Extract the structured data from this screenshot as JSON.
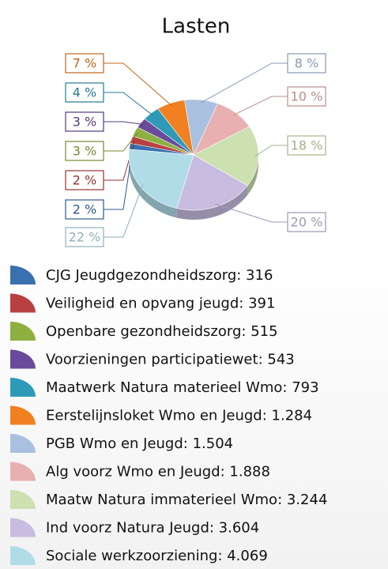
{
  "chart_data": {
    "type": "pie",
    "title": "Lasten",
    "categories": [
      "CJG Jeugdgezondheidszorg",
      "Veiligheid en opvang jeugd",
      "Openbare gezondheidszorg",
      "Voorzieningen participatiewet",
      "Maatwerk Natura materieel Wmo",
      "Eerstelijnsloket Wmo en Jeugd",
      "PGB Wmo en Jeugd",
      "Alg voorz Wmo en Jeugd",
      "Maatw Natura immaterieel Wmo",
      "Ind voorz Natura Jeugd",
      "Sociale werkzoorziening"
    ],
    "values": [
      316,
      391,
      515,
      543,
      793,
      1284,
      1504,
      1888,
      3244,
      3604,
      4069
    ],
    "value_labels": [
      "316",
      "391",
      "515",
      "543",
      "793",
      "1.284",
      "1.504",
      "1.888",
      "3.244",
      "3.604",
      "4.069"
    ],
    "percentages": [
      2,
      2,
      3,
      3,
      4,
      7,
      8,
      10,
      18,
      20,
      22
    ],
    "percentage_labels": [
      "2 %",
      "2 %",
      "3 %",
      "3 %",
      "4 %",
      "7 %",
      "8 %",
      "10 %",
      "18 %",
      "20 %",
      "22 %"
    ],
    "colors": [
      "#3a6fb0",
      "#b94040",
      "#8db040",
      "#6a4a9a",
      "#2e9ab8",
      "#f08020",
      "#a9c0e0",
      "#e8b0b0",
      "#cce0b0",
      "#c8bce0",
      "#b0dce8"
    ],
    "legend": "bottom"
  }
}
